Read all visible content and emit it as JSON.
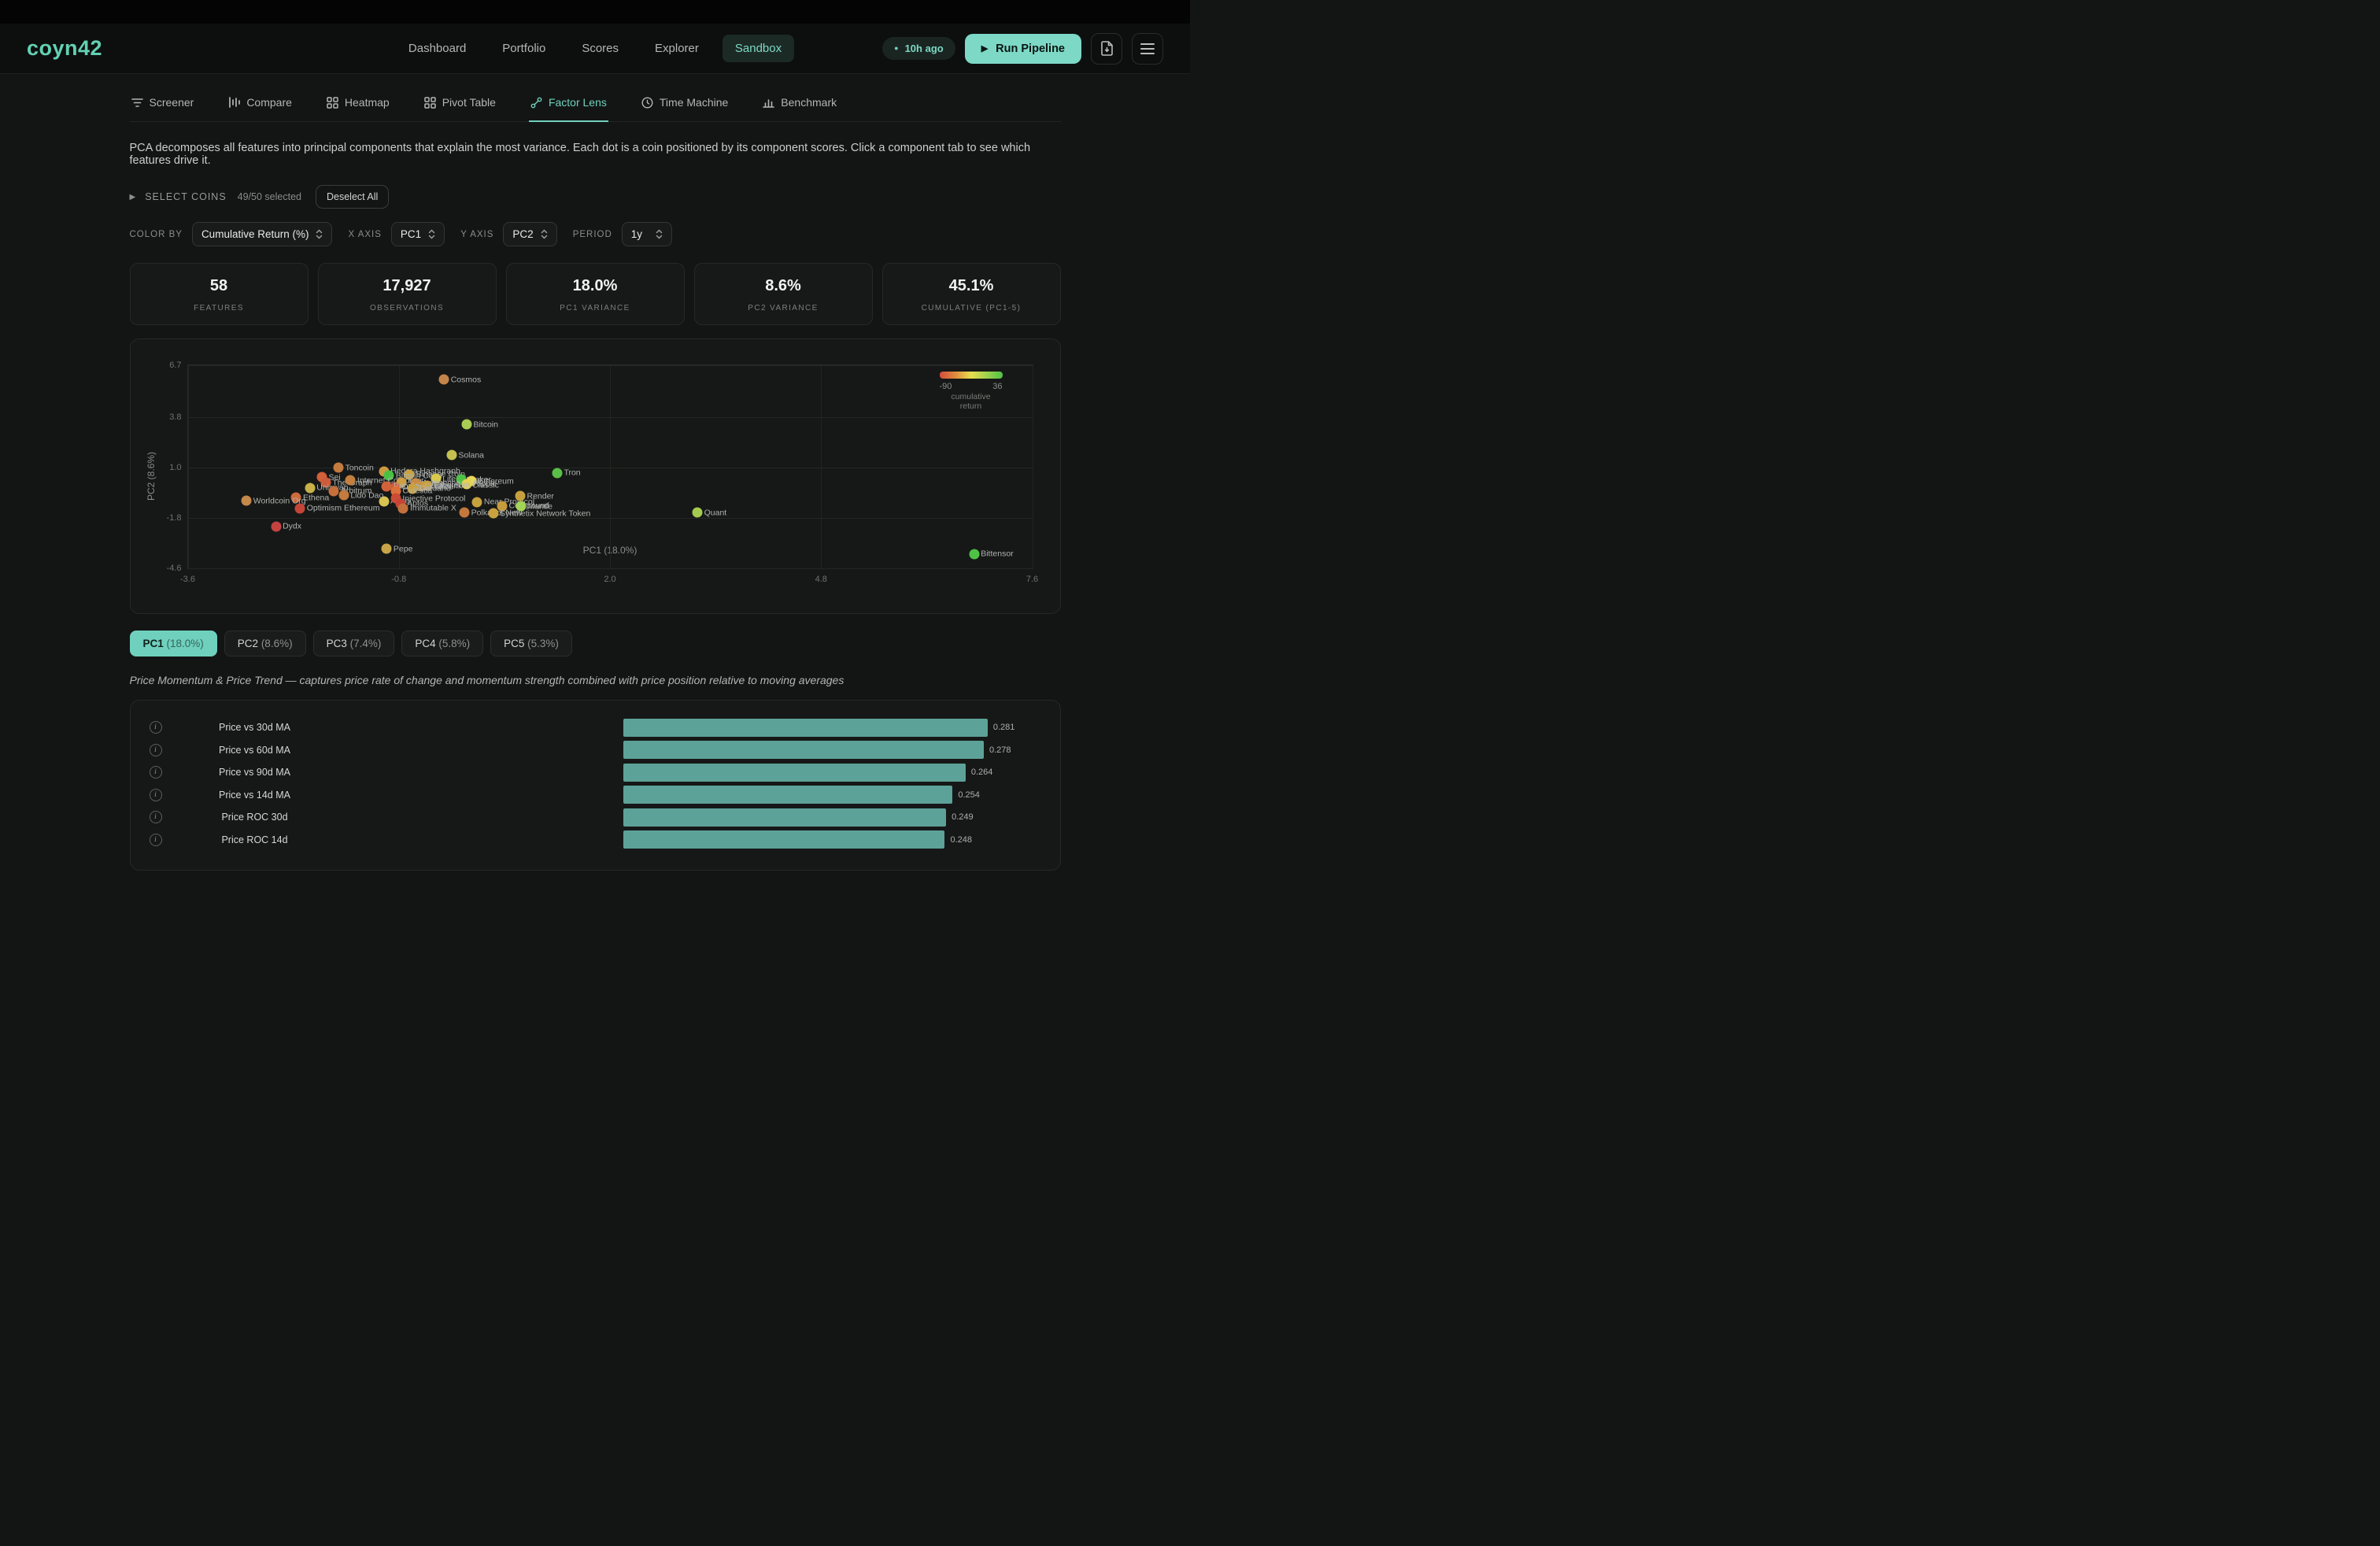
{
  "icons": {
    "play_glyph": "▶",
    "dot_glyph": "●",
    "caret_glyph": "▶",
    "info_glyph": "i"
  },
  "colors": {
    "accent": "#6fd0bd",
    "bar": "#5da298",
    "card_bg": "#161817",
    "nav_bg": "#0d0f0e"
  },
  "brand": {
    "logo": "coyn42"
  },
  "nav": {
    "items": [
      "Dashboard",
      "Portfolio",
      "Scores",
      "Explorer",
      "Sandbox"
    ],
    "active": "Sandbox",
    "last_run": "10h ago",
    "run_button": "Run Pipeline"
  },
  "tabs": {
    "items": [
      {
        "label": "Screener",
        "icon": "filter-icon"
      },
      {
        "label": "Compare",
        "icon": "bars-icon"
      },
      {
        "label": "Heatmap",
        "icon": "grid-icon"
      },
      {
        "label": "Pivot Table",
        "icon": "grid-icon"
      },
      {
        "label": "Factor Lens",
        "icon": "scatter-icon"
      },
      {
        "label": "Time Machine",
        "icon": "clock-icon"
      },
      {
        "label": "Benchmark",
        "icon": "chart-icon"
      }
    ],
    "active": "Factor Lens"
  },
  "intro": "PCA decomposes all features into principal components that explain the most variance. Each dot is a coin positioned by its component scores. Click a component tab to see which features drive it.",
  "select_coins": {
    "label": "SELECT COINS",
    "count": "49/50 selected",
    "deselect_button": "Deselect All"
  },
  "controls": {
    "color_by": {
      "label": "COLOR BY",
      "value": "Cumulative Return (%)"
    },
    "x_axis": {
      "label": "X AXIS",
      "value": "PC1"
    },
    "y_axis": {
      "label": "Y AXIS",
      "value": "PC2"
    },
    "period": {
      "label": "PERIOD",
      "value": "1y"
    }
  },
  "stats": [
    {
      "value": "58",
      "label": "FEATURES"
    },
    {
      "value": "17,927",
      "label": "OBSERVATIONS"
    },
    {
      "value": "18.0%",
      "label": "PC1 VARIANCE"
    },
    {
      "value": "8.6%",
      "label": "PC2 VARIANCE"
    },
    {
      "value": "45.1%",
      "label": "CUMULATIVE (PC1-5)"
    }
  ],
  "chart_data": [
    {
      "type": "scatter",
      "xlabel": "PC1 (18.0%)",
      "ylabel": "PC2 (8.6%)",
      "xlim": [
        -3.6,
        7.6
      ],
      "ylim": [
        -4.6,
        6.7
      ],
      "x_ticks": [
        "-3.6",
        "-0.8",
        "2.0",
        "4.8",
        "7.6"
      ],
      "y_ticks": [
        "6.7",
        "3.8",
        "1.0",
        "-1.8",
        "-4.6"
      ],
      "grid": true,
      "legend": {
        "min": "-90",
        "max": "36",
        "caption": "cumulative return",
        "gradient": [
          "#d84b3c",
          "#df8c3e",
          "#e6df4e",
          "#9ed14c",
          "#4fc246"
        ]
      },
      "points": [
        {
          "label": "Cosmos",
          "x": -0.2,
          "y": 5.9,
          "color": "#c3854a"
        },
        {
          "label": "Bitcoin",
          "x": 0.1,
          "y": 3.4,
          "color": "#a9cc52"
        },
        {
          "label": "Solana",
          "x": -0.1,
          "y": 1.7,
          "color": "#c6c050"
        },
        {
          "label": "Toncoin",
          "x": -1.6,
          "y": 1.0,
          "color": "#c37b3e"
        },
        {
          "label": "Tron",
          "x": 1.3,
          "y": 0.7,
          "color": "#5abf47"
        },
        {
          "label": "Hedera Hashgraph",
          "x": -1.0,
          "y": 0.8,
          "color": "#ce9a41"
        },
        {
          "label": "Binance Coin",
          "x": -0.66,
          "y": 0.63,
          "color": "#c9a23f"
        },
        {
          "label": "Bitcoin Cash",
          "x": -0.93,
          "y": 0.55,
          "color": "#49c243"
        },
        {
          "label": "Litecoin",
          "x": -0.31,
          "y": 0.38,
          "color": "#d9c94e"
        },
        {
          "label": "Maker",
          "x": 0.03,
          "y": 0.34,
          "color": "#4fc246"
        },
        {
          "label": "Ethereum",
          "x": 0.16,
          "y": 0.26,
          "color": "#e8d75b"
        },
        {
          "label": "Ripple",
          "x": 0.1,
          "y": 0.09,
          "color": "#e3d055"
        },
        {
          "label": "Sei",
          "x": -1.82,
          "y": 0.46,
          "color": "#d26039"
        },
        {
          "label": "The Graph",
          "x": -1.77,
          "y": 0.17,
          "color": "#cb5c3c"
        },
        {
          "label": "Internet Computer",
          "x": -1.44,
          "y": 0.29,
          "color": "#c3803e"
        },
        {
          "label": "Uniswap",
          "x": -1.98,
          "y": -0.13,
          "color": "#c9b149"
        },
        {
          "label": "Arbitrum",
          "x": -1.66,
          "y": -0.29,
          "color": "#c66f3b"
        },
        {
          "label": "Shiba Inu",
          "x": -0.77,
          "y": 0.17,
          "color": "#cf9f42"
        },
        {
          "label": "Avalanche",
          "x": -0.58,
          "y": 0.14,
          "color": "#c98c44"
        },
        {
          "label": "Chainlink",
          "x": -0.5,
          "y": -0.03,
          "color": "#cc9340"
        },
        {
          "label": "Ethereum Classic",
          "x": -0.42,
          "y": 0.0,
          "color": "#c9a23f"
        },
        {
          "label": "Ondo Finance",
          "x": -0.85,
          "y": -0.08,
          "color": "#cc5b39"
        },
        {
          "label": "Pendle",
          "x": -0.96,
          "y": -0.03,
          "color": "#d1623a"
        },
        {
          "label": "Cardano",
          "x": -0.62,
          "y": -0.16,
          "color": "#c9a23f"
        },
        {
          "label": "Celestia",
          "x": -0.84,
          "y": -0.29,
          "color": "#dd7038"
        },
        {
          "label": "Aave",
          "x": -1.0,
          "y": -0.87,
          "color": "#d6c350"
        },
        {
          "label": "Injective Protocol",
          "x": -0.84,
          "y": -0.71,
          "color": "#cb4b36"
        },
        {
          "label": "Aptos",
          "x": -0.78,
          "y": -1.0,
          "color": "#c44536"
        },
        {
          "label": "Immutable X",
          "x": -0.74,
          "y": -1.25,
          "color": "#c4703c"
        },
        {
          "label": "Ethena",
          "x": -2.16,
          "y": -0.67,
          "color": "#cc6c3b"
        },
        {
          "label": "Lido Dao",
          "x": -1.53,
          "y": -0.54,
          "color": "#c37b3e"
        },
        {
          "label": "Worldcoin Org",
          "x": -2.82,
          "y": -0.84,
          "color": "#c3884a"
        },
        {
          "label": "Optimism Ethereum",
          "x": -2.11,
          "y": -1.25,
          "color": "#c44536"
        },
        {
          "label": "Dydx",
          "x": -2.43,
          "y": -2.26,
          "color": "#c44340"
        },
        {
          "label": "Near Protocol",
          "x": 0.24,
          "y": -0.92,
          "color": "#c6a23e"
        },
        {
          "label": "Render",
          "x": 0.81,
          "y": -0.58,
          "color": "#c6a03e"
        },
        {
          "label": "Compound",
          "x": 0.57,
          "y": -1.13,
          "color": "#c69b3e"
        },
        {
          "label": "Mantle",
          "x": 0.82,
          "y": -1.16,
          "color": "#a4d455"
        },
        {
          "label": "Polkadot New",
          "x": 0.07,
          "y": -1.5,
          "color": "#c3783c"
        },
        {
          "label": "Synthetix Network Token",
          "x": 0.45,
          "y": -1.55,
          "color": "#c9a23f"
        },
        {
          "label": "Quant",
          "x": 3.16,
          "y": -1.5,
          "color": "#a4cb4f"
        },
        {
          "label": "Pepe",
          "x": -0.96,
          "y": -3.52,
          "color": "#c8a448"
        },
        {
          "label": "Bittensor",
          "x": 6.83,
          "y": -3.81,
          "color": "#4fc246"
        }
      ]
    },
    {
      "type": "bar",
      "orientation": "horizontal",
      "bar_color": "#5da298",
      "value_max": 0.322,
      "categories": [
        "Price vs 30d MA",
        "Price vs 60d MA",
        "Price vs 90d MA",
        "Price vs 14d MA",
        "Price ROC 30d",
        "Price ROC 14d"
      ],
      "values": [
        0.281,
        0.278,
        0.264,
        0.254,
        0.249,
        0.248
      ]
    }
  ],
  "pc_tabs": [
    {
      "name": "PC1",
      "pct": "(18.0%)",
      "active": true
    },
    {
      "name": "PC2",
      "pct": "(8.6%)",
      "active": false
    },
    {
      "name": "PC3",
      "pct": "(7.4%)",
      "active": false
    },
    {
      "name": "PC4",
      "pct": "(5.8%)",
      "active": false
    },
    {
      "name": "PC5",
      "pct": "(5.3%)",
      "active": false
    }
  ],
  "pc_description": "Price Momentum & Price Trend — captures price rate of change and momentum strength combined with price position relative to moving averages"
}
